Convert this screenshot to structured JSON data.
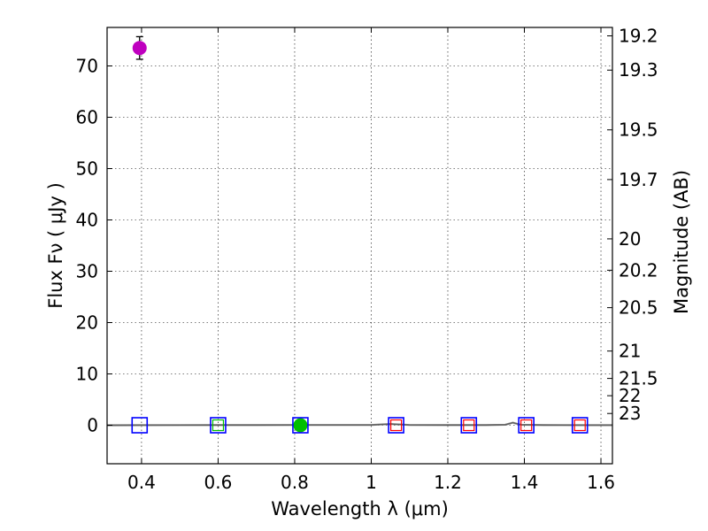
{
  "chart_data": {
    "type": "scatter",
    "xlabel": "Wavelength  λ (μm)",
    "ylabel": "Flux  Fν  ( μJy )",
    "y2label": "Magnitude (AB)",
    "xlim": [
      0.31,
      1.63
    ],
    "ylim": [
      -7.5,
      77.5
    ],
    "grid": true,
    "xticks": [
      {
        "v": 0.4,
        "label": "0.4"
      },
      {
        "v": 0.6,
        "label": "0.6"
      },
      {
        "v": 0.8,
        "label": "0.8"
      },
      {
        "v": 1.0,
        "label": "1"
      },
      {
        "v": 1.2,
        "label": "1.2"
      },
      {
        "v": 1.4,
        "label": "1.4"
      },
      {
        "v": 1.6,
        "label": "1.6"
      }
    ],
    "yticks": [
      {
        "v": 0,
        "label": "0"
      },
      {
        "v": 10,
        "label": "10"
      },
      {
        "v": 20,
        "label": "20"
      },
      {
        "v": 30,
        "label": "30"
      },
      {
        "v": 40,
        "label": "40"
      },
      {
        "v": 50,
        "label": "50"
      },
      {
        "v": 60,
        "label": "60"
      },
      {
        "v": 70,
        "label": "70"
      }
    ],
    "mag_ticks": [
      {
        "mag": 19.2,
        "label": "19.2"
      },
      {
        "mag": 19.3,
        "label": "19.3"
      },
      {
        "mag": 19.5,
        "label": "19.5"
      },
      {
        "mag": 19.7,
        "label": "19.7"
      },
      {
        "mag": 20.0,
        "label": "20"
      },
      {
        "mag": 20.2,
        "label": "20.2"
      },
      {
        "mag": 20.5,
        "label": "20.5"
      },
      {
        "mag": 21.0,
        "label": "21"
      },
      {
        "mag": 21.5,
        "label": "21.5"
      },
      {
        "mag": 22.0,
        "label": "22"
      },
      {
        "mag": 23.0,
        "label": "23"
      }
    ],
    "detections": [
      {
        "x": 0.395,
        "y": 73.5,
        "yerr": 2.2,
        "color": "#bf00bf"
      },
      {
        "x": 0.815,
        "y": 0.0,
        "yerr": 0.3,
        "color": "#00bf00"
      }
    ],
    "model_squares": [
      {
        "x": 0.395,
        "y": 0.0
      },
      {
        "x": 0.6,
        "y": 0.0
      },
      {
        "x": 0.815,
        "y": 0.0
      },
      {
        "x": 1.065,
        "y": 0.0
      },
      {
        "x": 1.255,
        "y": 0.0
      },
      {
        "x": 1.405,
        "y": 0.0
      },
      {
        "x": 1.545,
        "y": 0.0
      }
    ],
    "upper_limits": [
      {
        "x": 0.6,
        "y": 0.0,
        "color": "#00bf00"
      },
      {
        "x": 1.065,
        "y": 0.0,
        "color": "#ff0000"
      },
      {
        "x": 1.255,
        "y": 0.0,
        "color": "#ff0000"
      },
      {
        "x": 1.405,
        "y": 0.0,
        "color": "#ff0000"
      },
      {
        "x": 1.545,
        "y": 0.0,
        "color": "#ff0000"
      }
    ],
    "model_spectrum": {
      "color": "#808080",
      "x": [
        0.31,
        0.4,
        0.5,
        0.6,
        0.7,
        0.8,
        0.9,
        1.0,
        1.05,
        1.1,
        1.2,
        1.3,
        1.35,
        1.37,
        1.39,
        1.45,
        1.5,
        1.55,
        1.63
      ],
      "y": [
        0.0,
        0.02,
        0.03,
        0.04,
        0.04,
        0.05,
        0.05,
        0.05,
        0.25,
        0.05,
        0.04,
        0.04,
        0.1,
        0.5,
        0.1,
        0.04,
        0.03,
        0.02,
        0.02
      ]
    },
    "colors": {
      "model_square": "#0000ff"
    }
  }
}
